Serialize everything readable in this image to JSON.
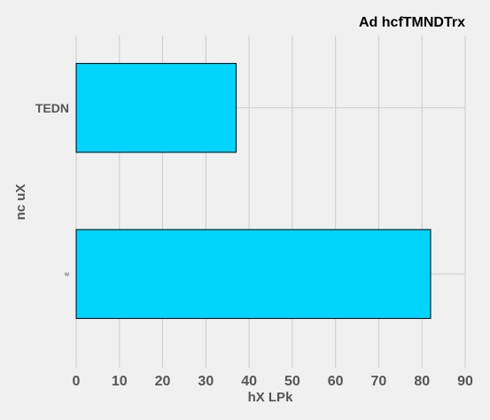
{
  "chart_data": {
    "type": "bar",
    "orientation": "horizontal",
    "title": "Ad hcfTMNDTrx",
    "xlabel": "hX LPk",
    "ylabel": "nc uX",
    "categories": [
      "TEDN",
      "w"
    ],
    "values": [
      37,
      82
    ],
    "xlim": [
      0,
      90
    ],
    "xticks": [
      "0",
      "10",
      "20",
      "30",
      "40",
      "50",
      "60",
      "70",
      "80",
      "90"
    ],
    "grid": true,
    "bar_color": "#00d4ff",
    "background": "#f0f0f0"
  }
}
